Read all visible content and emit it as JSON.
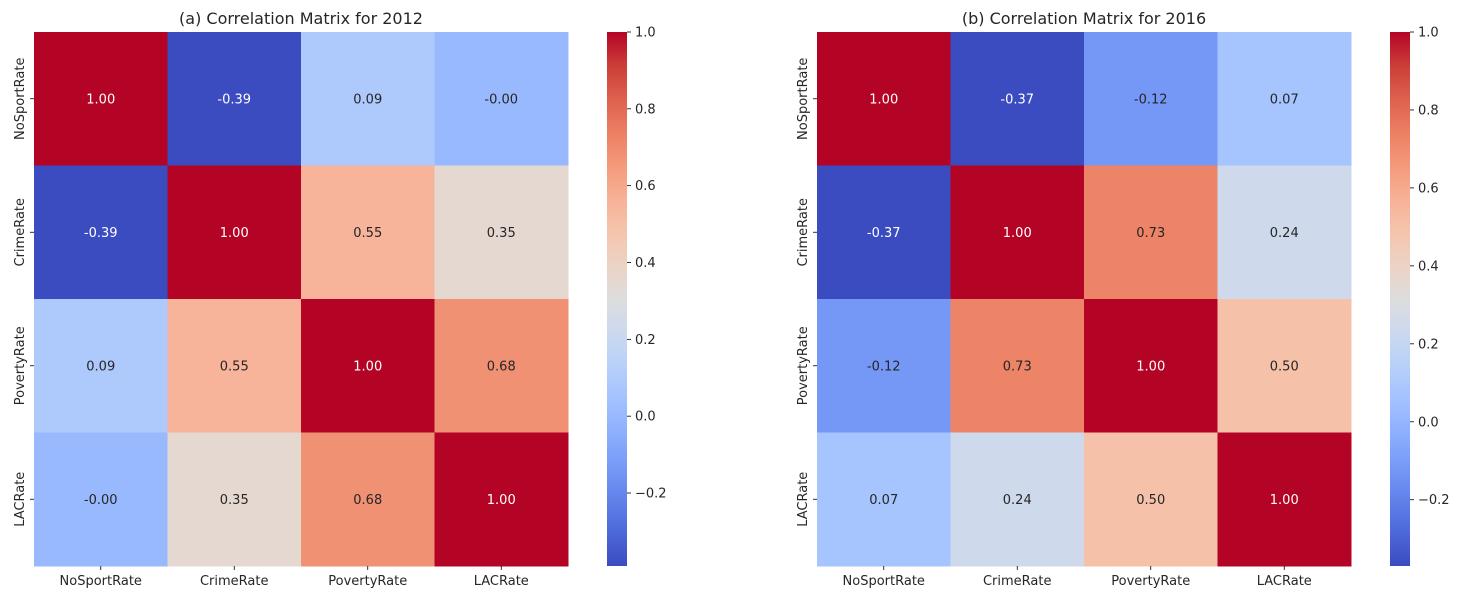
{
  "chart_data": [
    {
      "type": "heatmap",
      "title": "(a) Correlation Matrix for 2012",
      "rows": [
        "NoSportRate",
        "CrimeRate",
        "PovertyRate",
        "LACRate"
      ],
      "columns": [
        "NoSportRate",
        "CrimeRate",
        "PovertyRate",
        "LACRate"
      ],
      "values": [
        [
          1.0,
          -0.39,
          0.09,
          -0.0
        ],
        [
          -0.39,
          1.0,
          0.55,
          0.35
        ],
        [
          0.09,
          0.55,
          1.0,
          0.68
        ],
        [
          -0.0,
          0.35,
          0.68,
          1.0
        ]
      ],
      "labels": [
        [
          "1.00",
          "-0.39",
          "0.09",
          "-0.00"
        ],
        [
          "-0.39",
          "1.00",
          "0.55",
          "0.35"
        ],
        [
          "0.09",
          "0.55",
          "1.00",
          "0.68"
        ],
        [
          "-0.00",
          "0.35",
          "0.68",
          "1.00"
        ]
      ],
      "colormap": "coolwarm",
      "vmin": -0.39,
      "vmax": 1.0,
      "colorbar_ticks": [
        -0.2,
        0.0,
        0.2,
        0.4,
        0.6,
        0.8,
        1.0
      ],
      "colorbar_tick_labels": [
        "−0.2",
        "0.0",
        "0.2",
        "0.4",
        "0.6",
        "0.8",
        "1.0"
      ]
    },
    {
      "type": "heatmap",
      "title": "(b) Correlation Matrix for 2016",
      "rows": [
        "NoSportRate",
        "CrimeRate",
        "PovertyRate",
        "LACRate"
      ],
      "columns": [
        "NoSportRate",
        "CrimeRate",
        "PovertyRate",
        "LACRate"
      ],
      "values": [
        [
          1.0,
          -0.37,
          -0.12,
          0.07
        ],
        [
          -0.37,
          1.0,
          0.73,
          0.24
        ],
        [
          -0.12,
          0.73,
          1.0,
          0.5
        ],
        [
          0.07,
          0.24,
          0.5,
          1.0
        ]
      ],
      "labels": [
        [
          "1.00",
          "-0.37",
          "-0.12",
          "0.07"
        ],
        [
          "-0.37",
          "1.00",
          "0.73",
          "0.24"
        ],
        [
          "-0.12",
          "0.73",
          "1.00",
          "0.50"
        ],
        [
          "0.07",
          "0.24",
          "0.50",
          "1.00"
        ]
      ],
      "colormap": "coolwarm",
      "vmin": -0.37,
      "vmax": 1.0,
      "colorbar_ticks": [
        -0.2,
        0.0,
        0.2,
        0.4,
        0.6,
        0.8,
        1.0
      ],
      "colorbar_tick_labels": [
        "−0.2",
        "0.0",
        "0.2",
        "0.4",
        "0.6",
        "0.8",
        "1.0"
      ]
    }
  ]
}
